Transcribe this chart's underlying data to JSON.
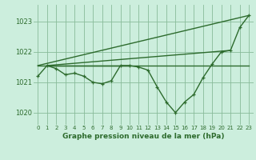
{
  "background_color": "#cceedd",
  "grid_color": "#88bb99",
  "line_color": "#2d6b2d",
  "title": "Graphe pression niveau de la mer (hPa)",
  "xlim": [
    -0.5,
    23.5
  ],
  "ylim": [
    1019.6,
    1023.55
  ],
  "yticks": [
    1020,
    1021,
    1022,
    1023
  ],
  "xticks": [
    0,
    1,
    2,
    3,
    4,
    5,
    6,
    7,
    8,
    9,
    10,
    11,
    12,
    13,
    14,
    15,
    16,
    17,
    18,
    19,
    20,
    21,
    22,
    23
  ],
  "series": [
    {
      "x": [
        0,
        23
      ],
      "y": [
        1021.55,
        1021.55
      ],
      "marker": false,
      "linewidth": 1.0
    },
    {
      "x": [
        0,
        1,
        2,
        3,
        4,
        5,
        6,
        7,
        8,
        9,
        10,
        11,
        12,
        13,
        14,
        15,
        16,
        17,
        18,
        19,
        20,
        21,
        22,
        23
      ],
      "y": [
        1021.2,
        1021.55,
        1021.45,
        1021.25,
        1021.3,
        1021.2,
        1021.0,
        1020.95,
        1021.05,
        1021.55,
        1021.55,
        1021.5,
        1021.4,
        1020.85,
        1020.35,
        1020.0,
        1020.35,
        1020.6,
        1021.15,
        1021.6,
        1022.0,
        1022.05,
        1022.8,
        1023.2
      ],
      "marker": true,
      "linewidth": 1.0
    },
    {
      "x": [
        0,
        23
      ],
      "y": [
        1021.55,
        1023.2
      ],
      "marker": false,
      "linewidth": 1.0
    },
    {
      "x": [
        1,
        21
      ],
      "y": [
        1021.55,
        1022.05
      ],
      "marker": false,
      "linewidth": 1.0
    },
    {
      "x": [
        1,
        10
      ],
      "y": [
        1021.55,
        1021.55
      ],
      "marker": false,
      "linewidth": 1.0
    }
  ]
}
